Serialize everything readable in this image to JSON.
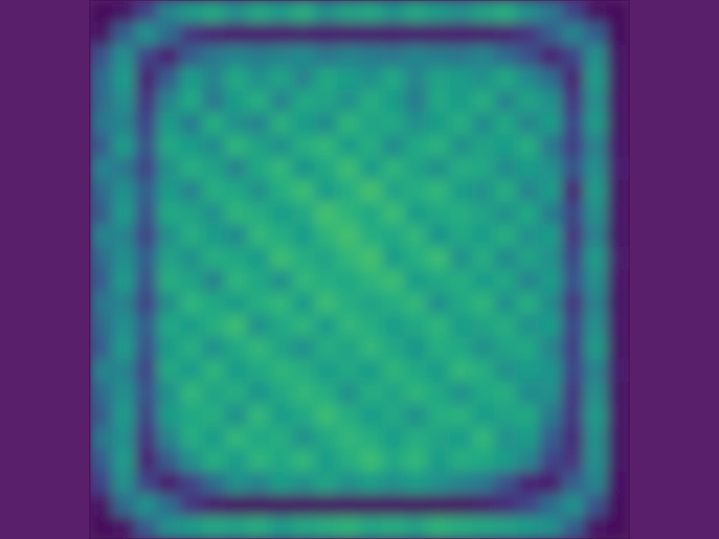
{
  "chart_data": {
    "type": "heatmap",
    "color": "viridis",
    "zlim": [
      0,
      1
    ],
    "tick_labels": false,
    "cells": [
      [
        0.02,
        0.05,
        0.2,
        0.45,
        0.55,
        0.6,
        0.5,
        0.6,
        0.55,
        0.62,
        0.5,
        0.58,
        0.6,
        0.52,
        0.6,
        0.55,
        0.5,
        0.58,
        0.62,
        0.5,
        0.4,
        0.2,
        0.05,
        0.02
      ],
      [
        0.05,
        0.3,
        0.5,
        0.35,
        0.15,
        0.1,
        0.08,
        0.08,
        0.08,
        0.08,
        0.08,
        0.08,
        0.08,
        0.08,
        0.08,
        0.08,
        0.08,
        0.08,
        0.1,
        0.15,
        0.3,
        0.45,
        0.3,
        0.03
      ],
      [
        0.25,
        0.5,
        0.2,
        0.1,
        0.3,
        0.4,
        0.45,
        0.42,
        0.45,
        0.48,
        0.4,
        0.45,
        0.42,
        0.4,
        0.45,
        0.42,
        0.4,
        0.45,
        0.35,
        0.25,
        0.1,
        0.2,
        0.5,
        0.05
      ],
      [
        0.35,
        0.55,
        0.1,
        0.3,
        0.55,
        0.45,
        0.6,
        0.5,
        0.58,
        0.45,
        0.6,
        0.55,
        0.5,
        0.6,
        0.45,
        0.58,
        0.55,
        0.5,
        0.6,
        0.48,
        0.35,
        0.1,
        0.55,
        0.05
      ],
      [
        0.35,
        0.5,
        0.15,
        0.45,
        0.6,
        0.4,
        0.55,
        0.62,
        0.45,
        0.6,
        0.58,
        0.5,
        0.62,
        0.55,
        0.42,
        0.6,
        0.55,
        0.62,
        0.45,
        0.58,
        0.5,
        0.15,
        0.5,
        0.06
      ],
      [
        0.4,
        0.45,
        0.2,
        0.55,
        0.42,
        0.62,
        0.5,
        0.45,
        0.63,
        0.55,
        0.48,
        0.65,
        0.58,
        0.6,
        0.5,
        0.55,
        0.62,
        0.48,
        0.6,
        0.45,
        0.55,
        0.2,
        0.55,
        0.05
      ],
      [
        0.3,
        0.55,
        0.25,
        0.6,
        0.55,
        0.48,
        0.65,
        0.58,
        0.5,
        0.62,
        0.66,
        0.55,
        0.62,
        0.48,
        0.6,
        0.64,
        0.5,
        0.58,
        0.55,
        0.62,
        0.4,
        0.18,
        0.45,
        0.06
      ],
      [
        0.45,
        0.4,
        0.2,
        0.5,
        0.62,
        0.58,
        0.45,
        0.6,
        0.66,
        0.52,
        0.6,
        0.68,
        0.55,
        0.65,
        0.58,
        0.5,
        0.62,
        0.6,
        0.48,
        0.55,
        0.5,
        0.25,
        0.5,
        0.08
      ],
      [
        0.35,
        0.5,
        0.3,
        0.55,
        0.45,
        0.62,
        0.6,
        0.5,
        0.62,
        0.68,
        0.55,
        0.62,
        0.7,
        0.58,
        0.62,
        0.66,
        0.55,
        0.5,
        0.62,
        0.45,
        0.55,
        0.1,
        0.55,
        0.05
      ],
      [
        0.3,
        0.55,
        0.25,
        0.6,
        0.58,
        0.5,
        0.65,
        0.62,
        0.55,
        0.6,
        0.7,
        0.65,
        0.6,
        0.68,
        0.55,
        0.6,
        0.62,
        0.58,
        0.5,
        0.6,
        0.42,
        0.2,
        0.5,
        0.06
      ],
      [
        0.45,
        0.45,
        0.2,
        0.5,
        0.62,
        0.55,
        0.48,
        0.66,
        0.62,
        0.55,
        0.65,
        0.7,
        0.62,
        0.6,
        0.66,
        0.52,
        0.6,
        0.55,
        0.62,
        0.5,
        0.55,
        0.15,
        0.45,
        0.05
      ],
      [
        0.35,
        0.5,
        0.3,
        0.58,
        0.5,
        0.62,
        0.6,
        0.55,
        0.68,
        0.62,
        0.58,
        0.66,
        0.7,
        0.55,
        0.62,
        0.68,
        0.5,
        0.62,
        0.48,
        0.58,
        0.5,
        0.2,
        0.55,
        0.07
      ],
      [
        0.3,
        0.55,
        0.25,
        0.62,
        0.58,
        0.45,
        0.65,
        0.6,
        0.5,
        0.66,
        0.62,
        0.6,
        0.65,
        0.68,
        0.55,
        0.6,
        0.62,
        0.55,
        0.6,
        0.45,
        0.55,
        0.25,
        0.5,
        0.06
      ],
      [
        0.4,
        0.45,
        0.2,
        0.5,
        0.65,
        0.6,
        0.55,
        0.62,
        0.66,
        0.55,
        0.68,
        0.62,
        0.58,
        0.62,
        0.66,
        0.5,
        0.6,
        0.65,
        0.5,
        0.62,
        0.48,
        0.15,
        0.45,
        0.05
      ],
      [
        0.35,
        0.5,
        0.3,
        0.6,
        0.55,
        0.62,
        0.68,
        0.5,
        0.6,
        0.65,
        0.55,
        0.66,
        0.62,
        0.55,
        0.6,
        0.65,
        0.55,
        0.58,
        0.62,
        0.5,
        0.55,
        0.2,
        0.5,
        0.06
      ],
      [
        0.3,
        0.55,
        0.25,
        0.55,
        0.62,
        0.5,
        0.6,
        0.66,
        0.58,
        0.5,
        0.62,
        0.58,
        0.66,
        0.6,
        0.52,
        0.62,
        0.6,
        0.5,
        0.58,
        0.6,
        0.45,
        0.18,
        0.55,
        0.05
      ],
      [
        0.45,
        0.45,
        0.2,
        0.6,
        0.55,
        0.65,
        0.55,
        0.6,
        0.65,
        0.62,
        0.55,
        0.6,
        0.55,
        0.65,
        0.6,
        0.55,
        0.66,
        0.62,
        0.5,
        0.55,
        0.52,
        0.2,
        0.45,
        0.07
      ],
      [
        0.35,
        0.5,
        0.25,
        0.5,
        0.66,
        0.58,
        0.62,
        0.52,
        0.6,
        0.66,
        0.62,
        0.5,
        0.62,
        0.58,
        0.65,
        0.6,
        0.5,
        0.6,
        0.62,
        0.48,
        0.5,
        0.15,
        0.5,
        0.05
      ],
      [
        0.3,
        0.55,
        0.2,
        0.55,
        0.6,
        0.62,
        0.5,
        0.66,
        0.55,
        0.6,
        0.68,
        0.62,
        0.55,
        0.6,
        0.5,
        0.62,
        0.64,
        0.55,
        0.58,
        0.6,
        0.4,
        0.15,
        0.55,
        0.06
      ],
      [
        0.4,
        0.5,
        0.15,
        0.45,
        0.62,
        0.55,
        0.66,
        0.6,
        0.62,
        0.5,
        0.6,
        0.66,
        0.62,
        0.55,
        0.62,
        0.58,
        0.55,
        0.66,
        0.5,
        0.55,
        0.3,
        0.12,
        0.5,
        0.05
      ],
      [
        0.3,
        0.55,
        0.1,
        0.3,
        0.5,
        0.62,
        0.55,
        0.65,
        0.6,
        0.66,
        0.55,
        0.62,
        0.68,
        0.6,
        0.66,
        0.55,
        0.62,
        0.6,
        0.55,
        0.45,
        0.2,
        0.15,
        0.5,
        0.05
      ],
      [
        0.2,
        0.5,
        0.2,
        0.08,
        0.2,
        0.35,
        0.5,
        0.45,
        0.55,
        0.5,
        0.58,
        0.5,
        0.55,
        0.5,
        0.55,
        0.5,
        0.45,
        0.4,
        0.25,
        0.1,
        0.08,
        0.3,
        0.45,
        0.04
      ],
      [
        0.05,
        0.35,
        0.5,
        0.35,
        0.15,
        0.08,
        0.05,
        0.05,
        0.05,
        0.05,
        0.05,
        0.05,
        0.05,
        0.05,
        0.05,
        0.05,
        0.05,
        0.08,
        0.12,
        0.2,
        0.35,
        0.5,
        0.25,
        0.03
      ],
      [
        0.02,
        0.05,
        0.3,
        0.5,
        0.55,
        0.6,
        0.58,
        0.62,
        0.55,
        0.6,
        0.62,
        0.65,
        0.6,
        0.62,
        0.58,
        0.65,
        0.62,
        0.6,
        0.58,
        0.55,
        0.5,
        0.3,
        0.05,
        0.02
      ]
    ]
  }
}
